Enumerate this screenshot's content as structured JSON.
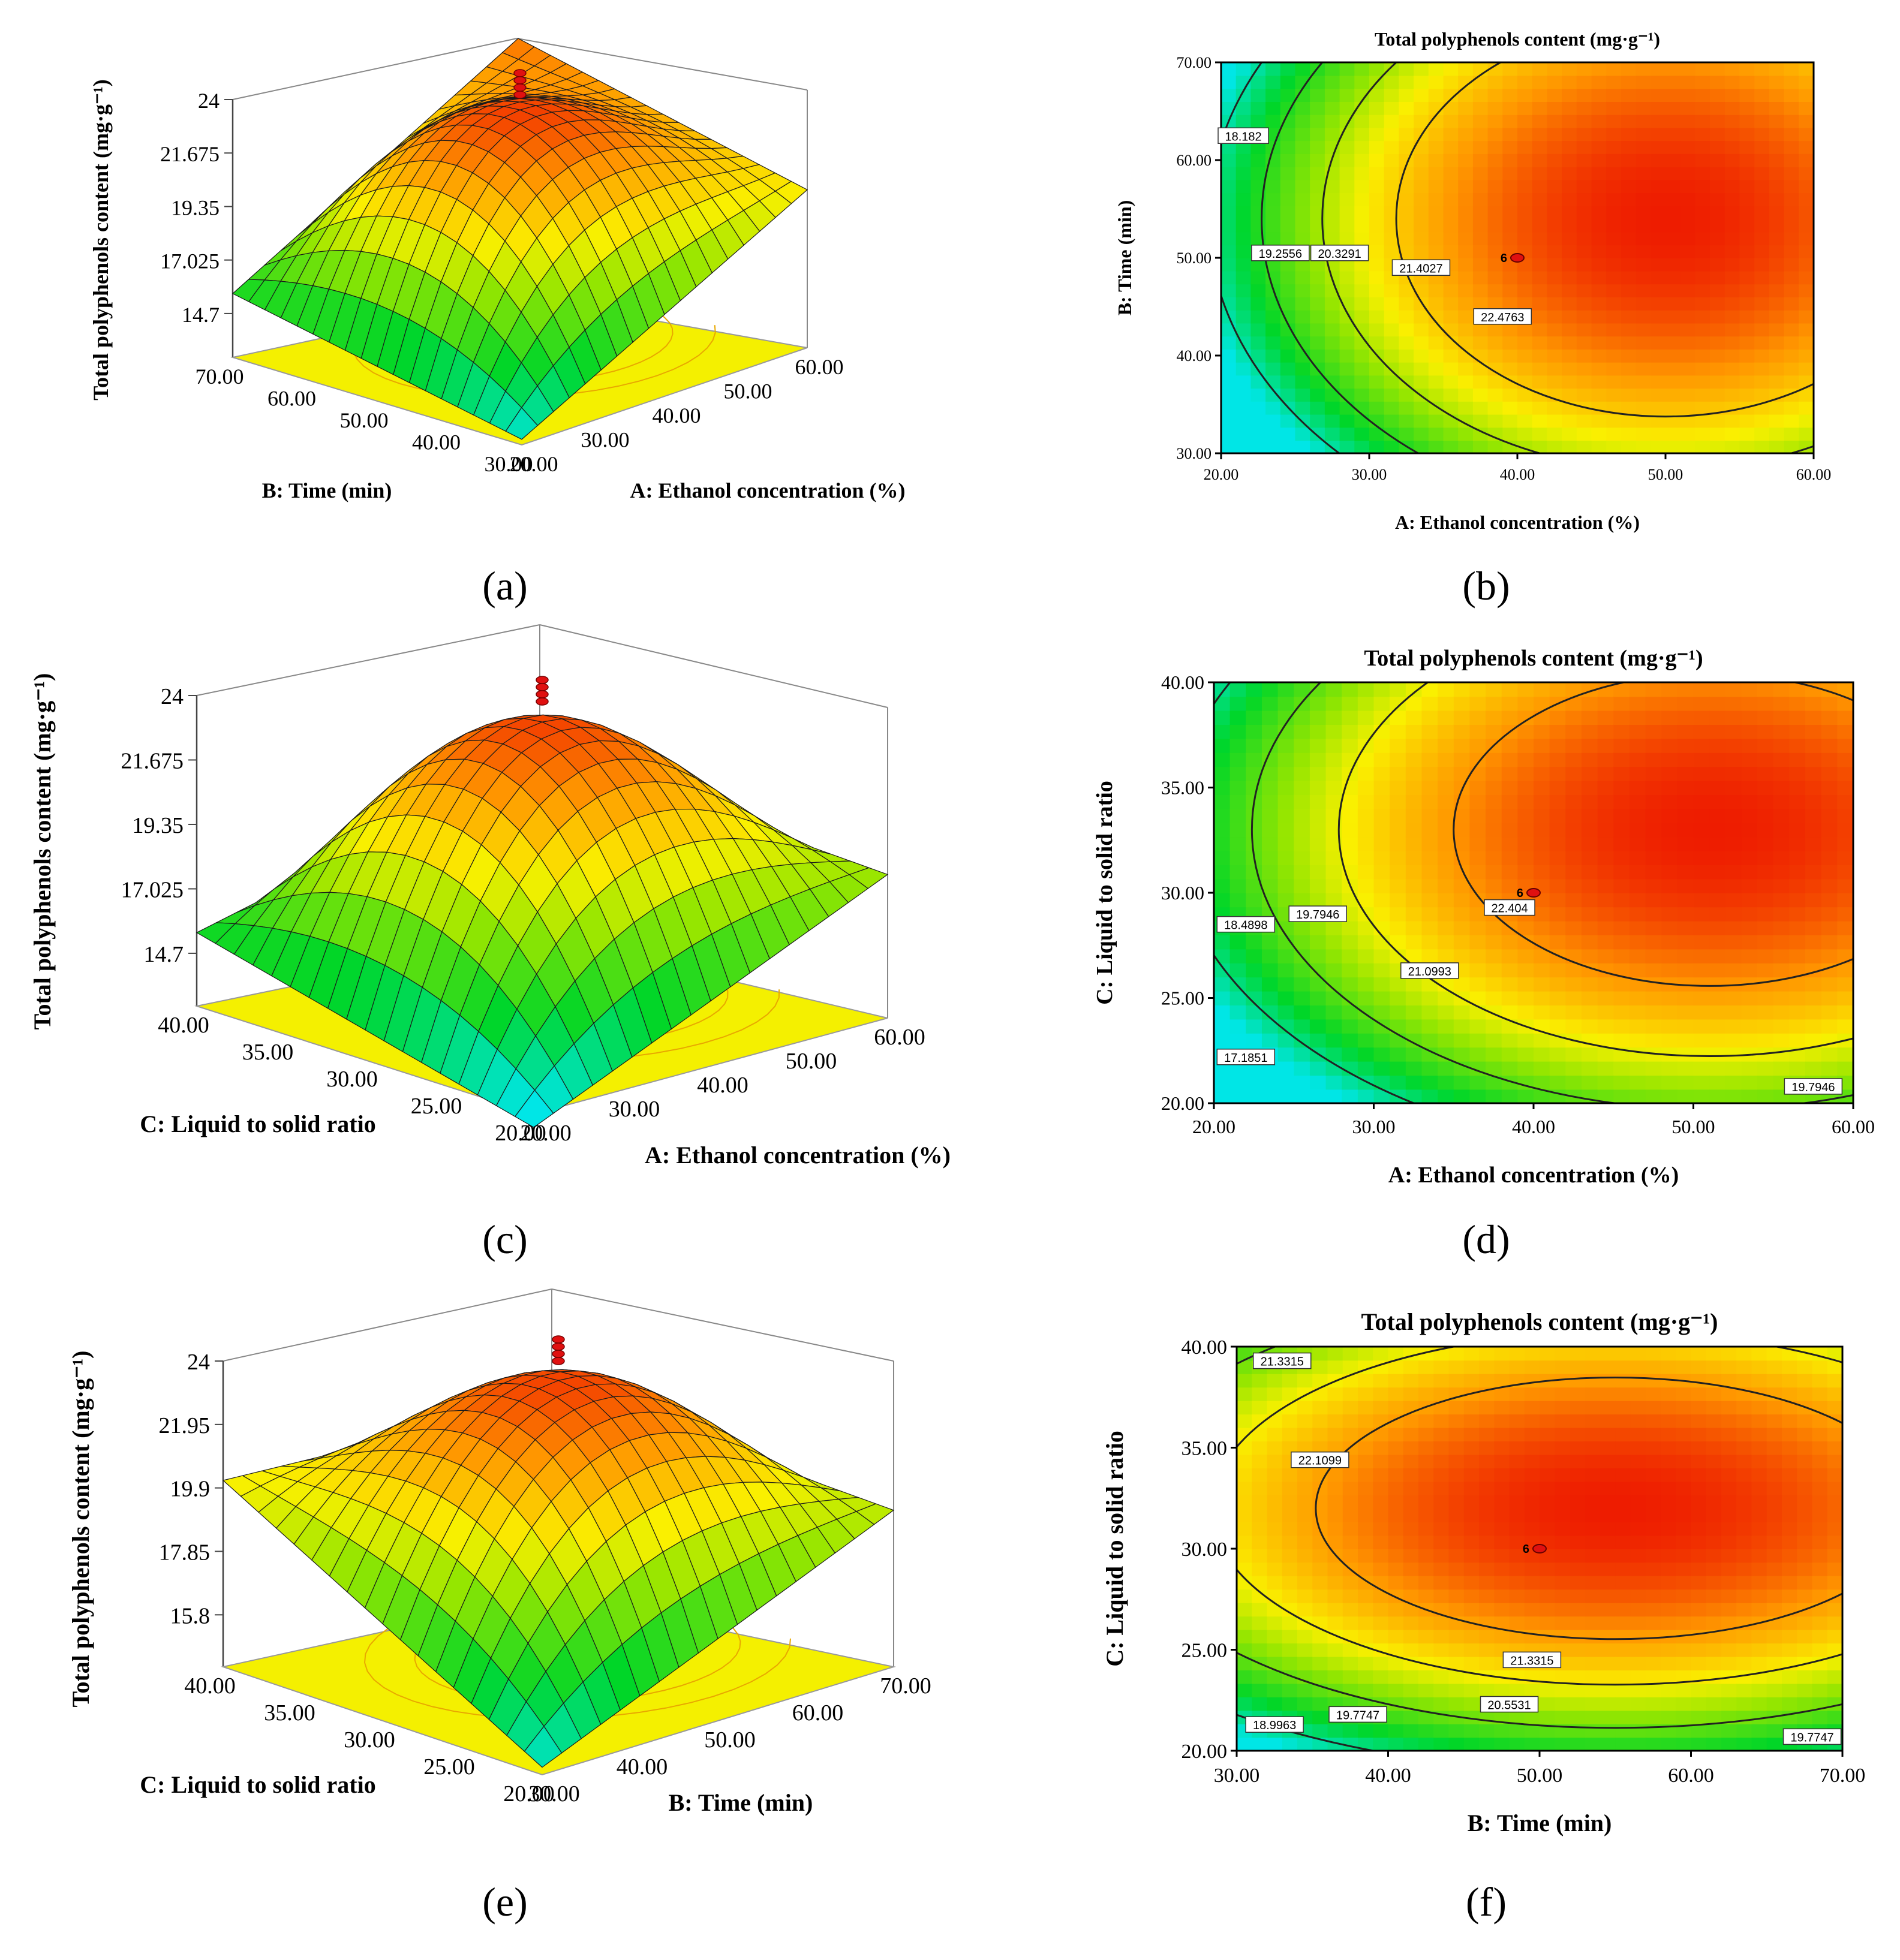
{
  "chart_data": [
    {
      "panel": "(a)",
      "type": "surface3d",
      "zlabel": "Total polyphenols content (mg·g⁻¹)",
      "xlabel": "A: Ethanol concentration (%)",
      "ylabel": "B: Time (min)",
      "z_ticks": [
        "24",
        "21.675",
        "19.35",
        "17.025",
        "14.7"
      ],
      "x_ticks": [
        "20.00",
        "30.00",
        "40.00",
        "50.00",
        "60.00"
      ],
      "y_ticks": [
        "30.00",
        "40.00",
        "50.00",
        "60.00",
        "70.00"
      ],
      "zlim": [
        14.7,
        24
      ],
      "surface_corners": {
        "A20_B30": 14.9,
        "A60_B30": 20.4,
        "A20_B70": 17.0,
        "A60_B70": 22.7
      },
      "max_value": 24.0
    },
    {
      "panel": "(b)",
      "type": "contour",
      "title": "Total polyphenols content (mg·g⁻¹)",
      "xlabel": "A: Ethanol concentration (%)",
      "ylabel": "B: Time (min)",
      "x_ticks": [
        "20.00",
        "30.00",
        "40.00",
        "50.00",
        "60.00"
      ],
      "y_ticks": [
        "30.00",
        "40.00",
        "50.00",
        "60.00",
        "70.00"
      ],
      "xlim": [
        20,
        60
      ],
      "ylim": [
        30,
        70
      ],
      "center_point": {
        "x": 40,
        "y": 50,
        "label": "6"
      },
      "optimum": {
        "x": 50,
        "y": 54
      },
      "contour_labels": [
        {
          "text": "18.182",
          "x": 21.5,
          "y": 62.5
        },
        {
          "text": "19.2556",
          "x": 24.0,
          "y": 50.5
        },
        {
          "text": "20.3291",
          "x": 28.0,
          "y": 50.5
        },
        {
          "text": "21.4027",
          "x": 33.5,
          "y": 49.0
        },
        {
          "text": "22.4763",
          "x": 39.0,
          "y": 44.0
        }
      ]
    },
    {
      "panel": "(c)",
      "type": "surface3d",
      "zlabel": "Total polyphenols content (mg·g⁻¹)",
      "xlabel": "A: Ethanol concentration (%)",
      "ylabel": "C: Liquid to solid ratio",
      "z_ticks": [
        "24",
        "21.675",
        "19.35",
        "17.025",
        "14.7"
      ],
      "x_ticks": [
        "20.00",
        "30.00",
        "40.00",
        "50.00",
        "60.00"
      ],
      "y_ticks": [
        "20.00",
        "25.00",
        "30.00",
        "35.00",
        "40.00"
      ],
      "zlim": [
        14.7,
        24
      ],
      "surface_corners": {
        "A20_C20": 14.3,
        "A60_C20": 19.0,
        "A20_C40": 16.9,
        "A60_C40": 19.4
      },
      "max_value": 24.0
    },
    {
      "panel": "(d)",
      "type": "contour",
      "title": "Total polyphenols content (mg·g⁻¹)",
      "xlabel": "A: Ethanol concentration (%)",
      "ylabel": "C: Liquid to solid ratio",
      "x_ticks": [
        "20.00",
        "30.00",
        "40.00",
        "50.00",
        "60.00"
      ],
      "y_ticks": [
        "20.00",
        "25.00",
        "30.00",
        "35.00",
        "40.00"
      ],
      "xlim": [
        20,
        60
      ],
      "ylim": [
        20,
        40
      ],
      "center_point": {
        "x": 40,
        "y": 30,
        "label": "6"
      },
      "optimum": {
        "x": 51,
        "y": 33
      },
      "contour_labels": [
        {
          "text": "18.4898",
          "x": 22.0,
          "y": 28.5
        },
        {
          "text": "19.7946",
          "x": 26.5,
          "y": 29.0
        },
        {
          "text": "22.404",
          "x": 38.5,
          "y": 29.3
        },
        {
          "text": "21.0993",
          "x": 33.5,
          "y": 26.3
        },
        {
          "text": "17.1851",
          "x": 22.0,
          "y": 22.2
        },
        {
          "text": "19.7946",
          "x": 57.5,
          "y": 20.8
        }
      ]
    },
    {
      "panel": "(e)",
      "type": "surface3d",
      "zlabel": "Total polyphenols content (mg·g⁻¹)",
      "xlabel": "B: Time (min)",
      "ylabel": "C: Liquid to solid ratio",
      "z_ticks": [
        "24",
        "21.95",
        "19.9",
        "17.85",
        "15.8"
      ],
      "x_ticks": [
        "30.00",
        "40.00",
        "50.00",
        "60.00",
        "70.00"
      ],
      "y_ticks": [
        "20.00",
        "25.00",
        "30.00",
        "35.00",
        "40.00"
      ],
      "zlim": [
        15.8,
        24
      ],
      "surface_corners": {
        "B30_C20": 16.0,
        "B70_C20": 20.0,
        "B30_C40": 20.8,
        "B70_C40": 20.2
      },
      "max_value": 24.0
    },
    {
      "panel": "(f)",
      "type": "contour",
      "title": "Total polyphenols content (mg·g⁻¹)",
      "xlabel": "B: Time (min)",
      "ylabel": "C: Liquid to solid ratio",
      "x_ticks": [
        "30.00",
        "40.00",
        "50.00",
        "60.00",
        "70.00"
      ],
      "y_ticks": [
        "20.00",
        "25.00",
        "30.00",
        "35.00",
        "40.00"
      ],
      "xlim": [
        30,
        70
      ],
      "ylim": [
        20,
        40
      ],
      "center_point": {
        "x": 50,
        "y": 30,
        "label": "6"
      },
      "optimum": {
        "x": 55,
        "y": 32
      },
      "contour_labels": [
        {
          "text": "21.3315",
          "x": 33.0,
          "y": 39.3
        },
        {
          "text": "22.1099",
          "x": 35.5,
          "y": 34.4
        },
        {
          "text": "21.3315",
          "x": 49.5,
          "y": 24.5
        },
        {
          "text": "20.5531",
          "x": 48.0,
          "y": 22.3
        },
        {
          "text": "19.7747",
          "x": 38.0,
          "y": 21.8
        },
        {
          "text": "18.9963",
          "x": 32.5,
          "y": 21.3
        },
        {
          "text": "19.7747",
          "x": 68.0,
          "y": 20.7
        }
      ]
    }
  ]
}
